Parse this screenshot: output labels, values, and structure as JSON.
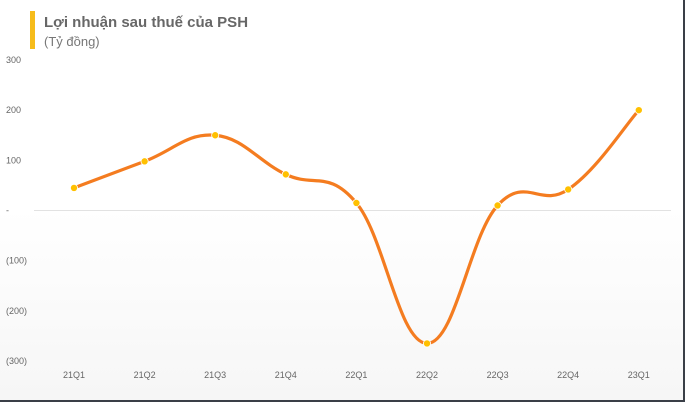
{
  "chart_data": {
    "type": "line",
    "title": "Lợi nhuận sau thuế của PSH",
    "subtitle": "(Tỷ đồng)",
    "categories": [
      "21Q1",
      "21Q2",
      "21Q3",
      "21Q4",
      "22Q1",
      "22Q2",
      "22Q3",
      "22Q4",
      "23Q1"
    ],
    "series": [
      {
        "values": [
          45,
          98,
          150,
          72,
          15,
          -265,
          10,
          42,
          200
        ]
      }
    ],
    "y_ticks": [
      {
        "value": 300,
        "label": "300"
      },
      {
        "value": 200,
        "label": "200"
      },
      {
        "value": 100,
        "label": "100"
      },
      {
        "value": 0,
        "label": "-"
      },
      {
        "value": -100,
        "label": "(100)"
      },
      {
        "value": -200,
        "label": "(200)"
      },
      {
        "value": -300,
        "label": "(300)"
      }
    ],
    "ylim": [
      -300,
      300
    ],
    "grid": false,
    "line_color": "#f47c20",
    "marker_color": "#ffc000",
    "zero_line_color": "#e2e2e2"
  }
}
